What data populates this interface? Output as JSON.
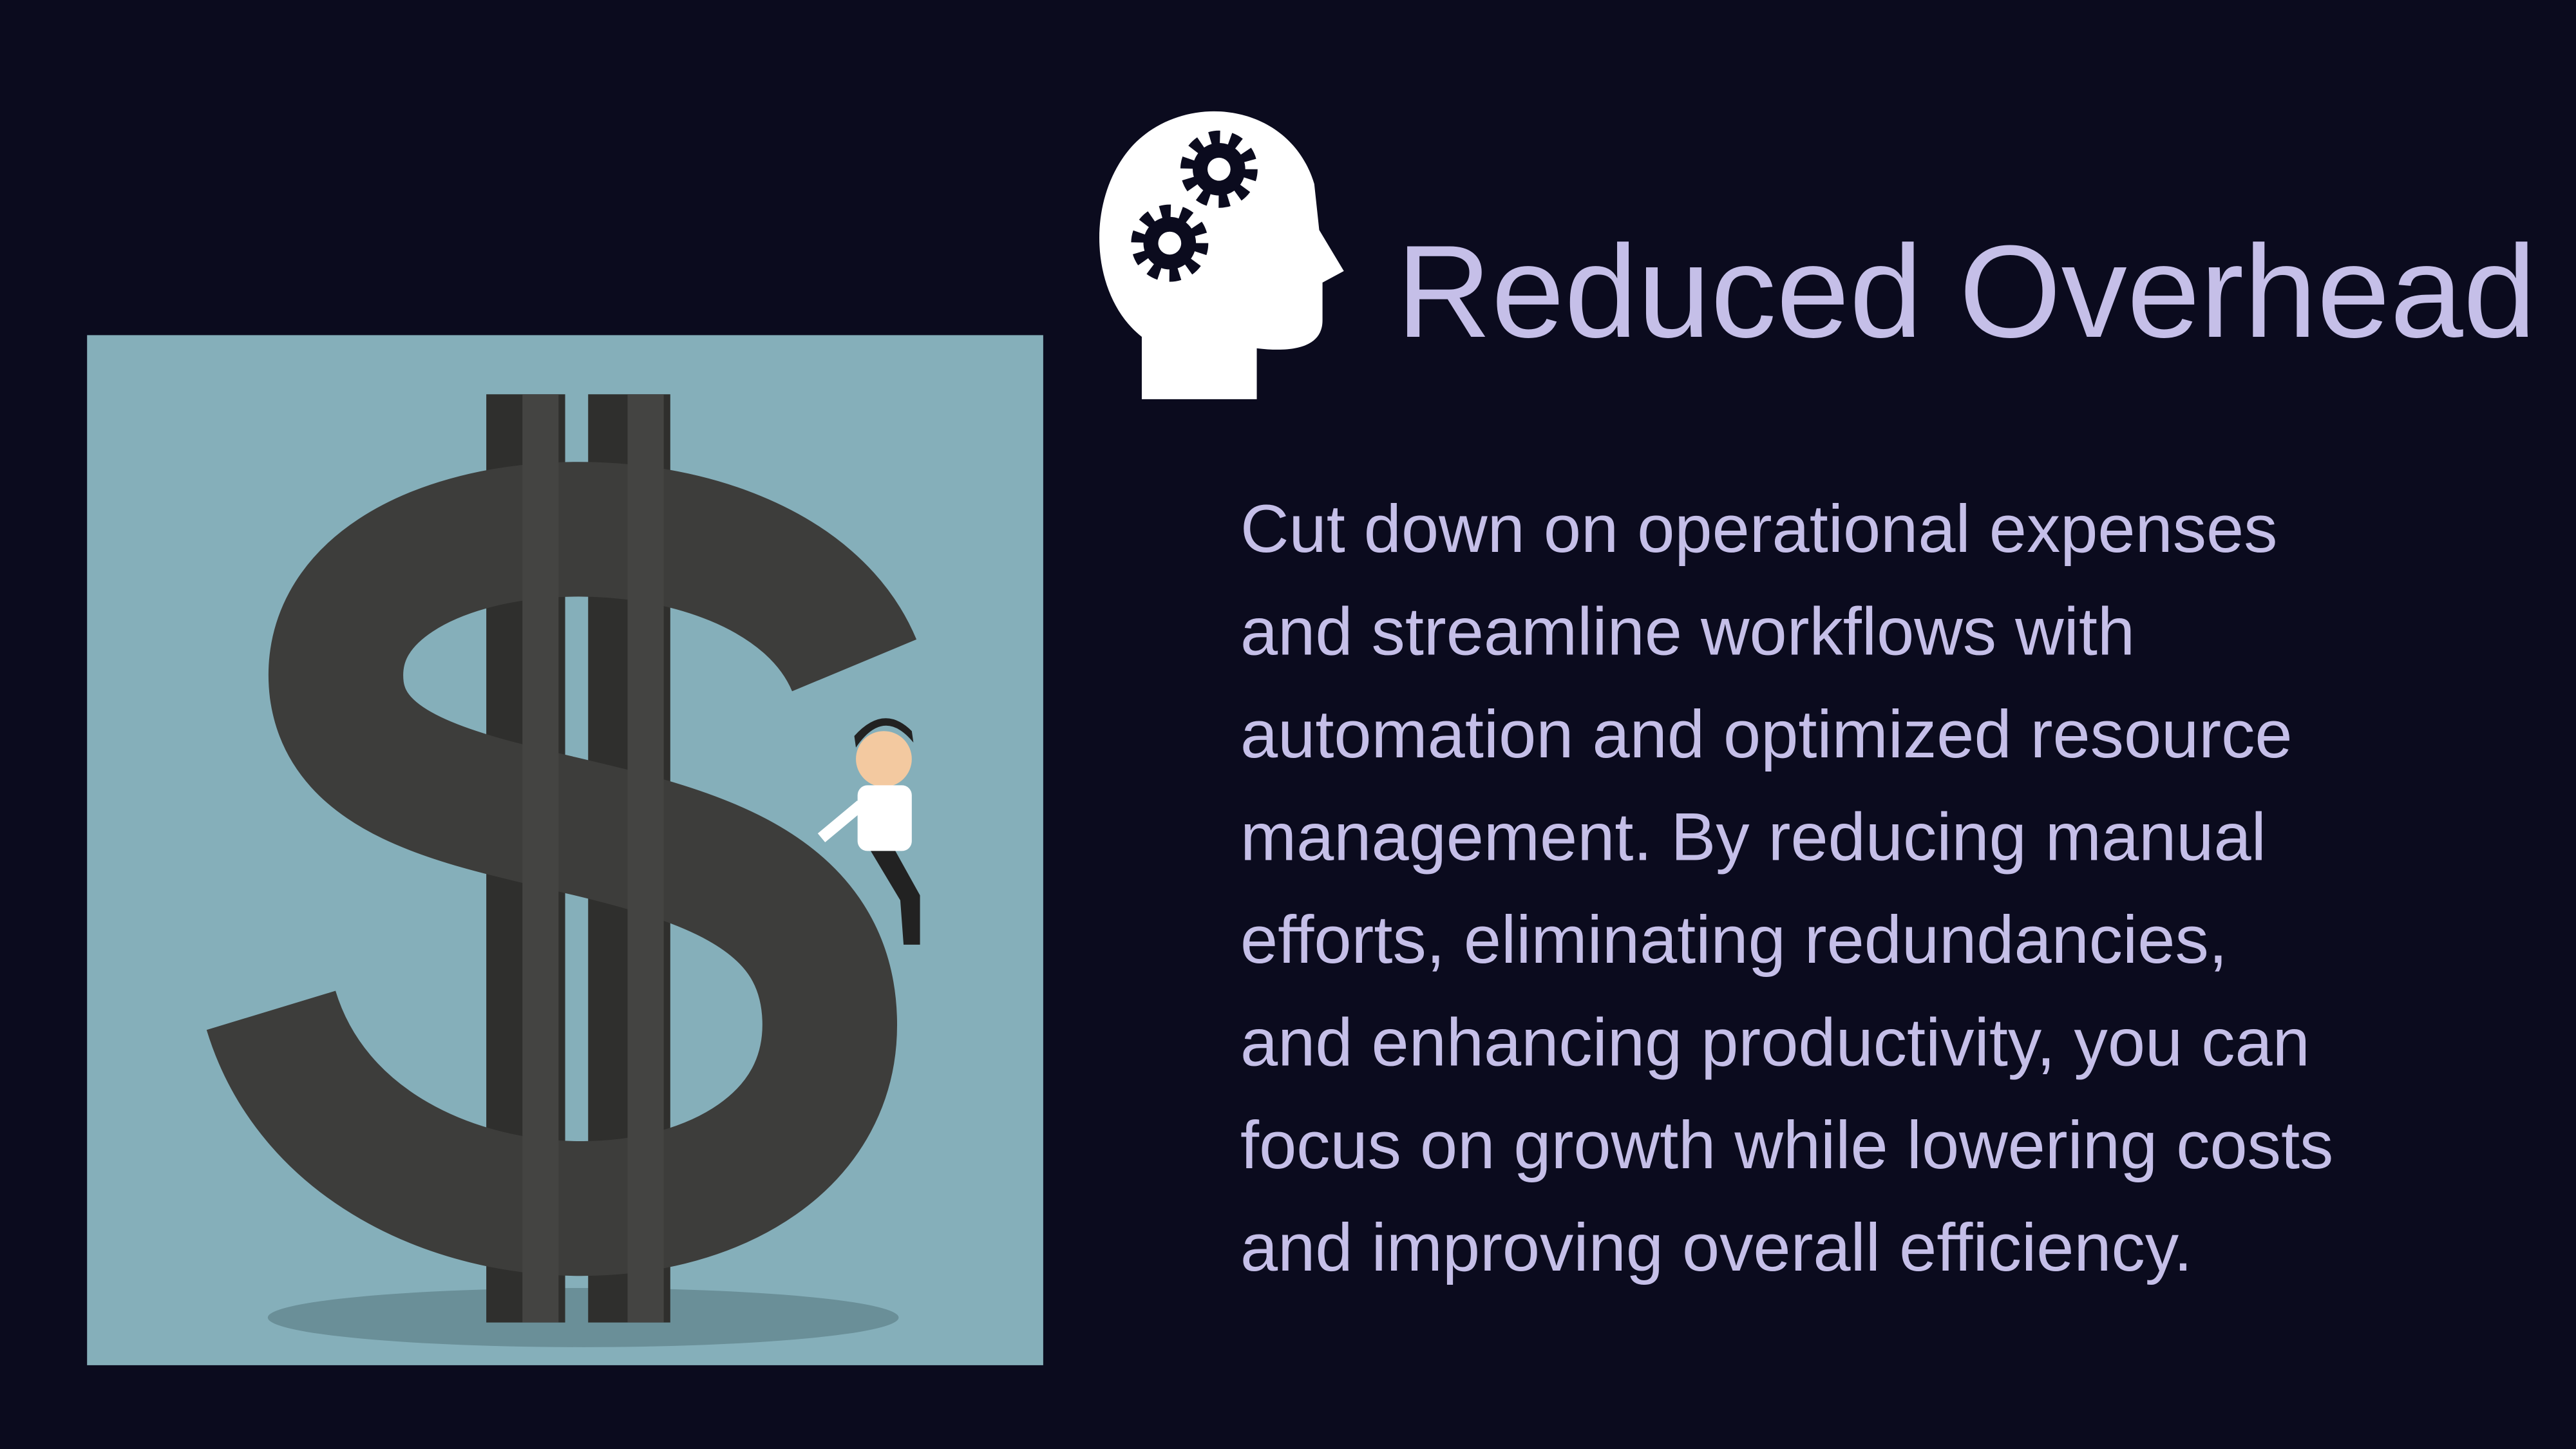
{
  "slide": {
    "title": "Reduced Overhead",
    "body_lines": [
      "Cut down on operational expenses",
      "and streamline workflows with",
      "automation and optimized resource",
      "management. By reducing manual",
      "efforts, eliminating redundancies,",
      "and enhancing productivity, you can",
      "focus on growth while lowering costs",
      "and improving overall efficiency."
    ]
  }
}
